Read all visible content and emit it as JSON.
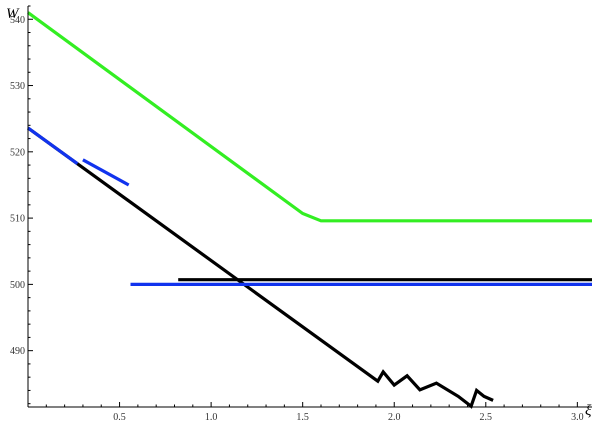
{
  "chart_data": {
    "type": "line",
    "xlabel": "ξ",
    "ylabel": "W",
    "xlim": [
      0,
      3.08
    ],
    "ylim": [
      481.5,
      542
    ],
    "x_ticks": [
      0.5,
      1.0,
      1.5,
      2.0,
      2.5,
      3.0
    ],
    "x_tick_labels": [
      "0.5",
      "1.0",
      "1.5",
      "2.0",
      "2.5",
      "3.0"
    ],
    "y_ticks": [
      490,
      500,
      510,
      520,
      530,
      540
    ],
    "y_tick_labels": [
      "490",
      "500",
      "510",
      "520",
      "530",
      "540"
    ],
    "grid": false,
    "series": [
      {
        "color": "#33ee22",
        "points": [
          [
            0,
            541
          ],
          [
            1.5,
            510.7
          ],
          [
            1.6,
            509.6
          ],
          [
            3.08,
            509.6
          ]
        ]
      },
      {
        "color": "#000000",
        "points": [
          [
            0,
            523.6
          ],
          [
            1.91,
            485.4
          ],
          [
            1.94,
            486.8
          ],
          [
            2.0,
            484.8
          ],
          [
            2.07,
            486.2
          ],
          [
            2.14,
            484.1
          ],
          [
            2.23,
            485.1
          ],
          [
            2.35,
            483.1
          ],
          [
            2.42,
            481.6
          ],
          [
            2.45,
            484.0
          ],
          [
            2.49,
            483.1
          ],
          [
            2.54,
            482.5
          ]
        ]
      },
      {
        "color": "#000000",
        "points": [
          [
            0.82,
            500.7
          ],
          [
            3.08,
            500.7
          ]
        ]
      },
      {
        "color": "#1133ee",
        "points": [
          [
            0,
            523.6
          ],
          [
            0.27,
            518.2
          ]
        ]
      },
      {
        "color": "#1133ee",
        "points": [
          [
            0.3,
            518.8
          ],
          [
            0.55,
            515.0
          ]
        ]
      },
      {
        "color": "#1133ee",
        "points": [
          [
            0.56,
            500.0
          ],
          [
            3.08,
            500.0
          ]
        ]
      }
    ]
  }
}
